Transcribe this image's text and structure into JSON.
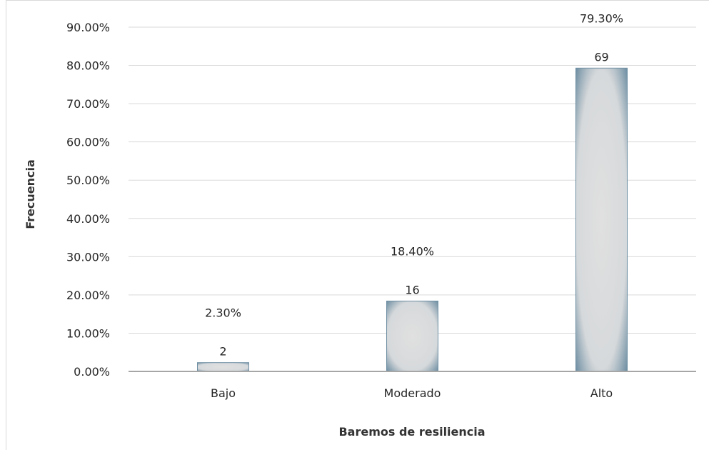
{
  "chart_data": {
    "type": "bar",
    "title": "",
    "xlabel": "Baremos de resiliencia",
    "ylabel": "Frecuencia",
    "categories": [
      "Bajo",
      "Moderado",
      "Alto"
    ],
    "values": [
      2.3,
      18.4,
      79.3
    ],
    "counts": [
      "2",
      "16",
      "69"
    ],
    "percent_labels": [
      "2.30%",
      "18.40%",
      "79.30%"
    ],
    "yticks": [
      0,
      10,
      20,
      30,
      40,
      50,
      60,
      70,
      80,
      90
    ],
    "ytick_labels": [
      "0.00%",
      "10.00%",
      "20.00%",
      "30.00%",
      "40.00%",
      "50.00%",
      "60.00%",
      "70.00%",
      "80.00%",
      "90.00%"
    ],
    "ylim": [
      0,
      90
    ],
    "grid": true,
    "legend": false,
    "colors": {
      "bar_fill": "#d9d9d9",
      "bar_edge": "#6f8fa3",
      "grid": "#d9d9d9",
      "axis": "#a6a6a6",
      "text": "#262626"
    }
  }
}
